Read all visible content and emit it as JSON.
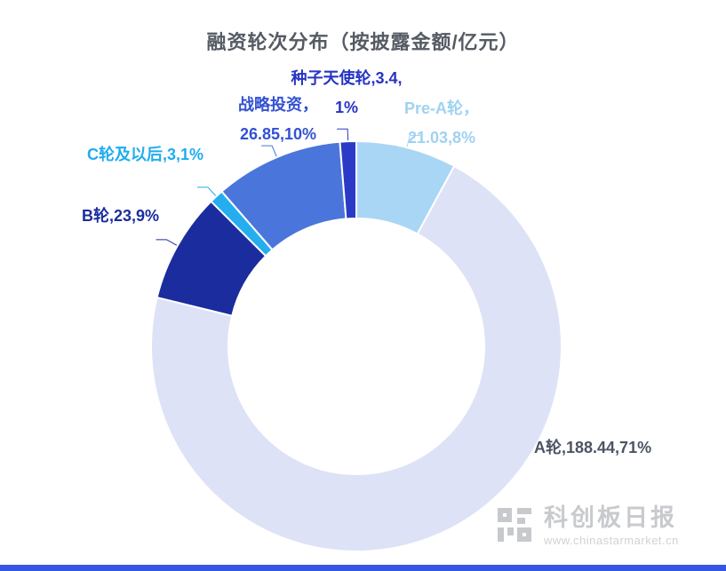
{
  "page": {
    "background": "#ffffff",
    "bottom_bar_color": "#3556E4"
  },
  "chart_data": {
    "type": "pie",
    "subtype": "donut",
    "title": "融资轮次分布（按披露金额/亿元）",
    "value_unit": "亿元",
    "label_position": "outside",
    "legend": "none",
    "series": [
      {
        "name": "Pre-A轮",
        "value": 21.03,
        "percent": "8%",
        "color": "#A9D6F5"
      },
      {
        "name": "A轮",
        "value": 188.44,
        "percent": "71%",
        "color": "#DEE2F7"
      },
      {
        "name": "B轮",
        "value": 23,
        "percent": "9%",
        "color": "#1A2C9E"
      },
      {
        "name": "C轮及以后",
        "value": 3,
        "percent": "1%",
        "color": "#24AEF0"
      },
      {
        "name": "战略投资",
        "value": 26.85,
        "percent": "10%",
        "color": "#4A76DB"
      },
      {
        "name": "种子天使轮",
        "value": 3.4,
        "percent": "1%",
        "color": "#2B3AC6"
      }
    ]
  },
  "callouts": {
    "seed": {
      "line1": "种子天使轮,3.4,",
      "line2": "1%",
      "color": "#2634C4"
    },
    "strategic": {
      "line1": "战略投资，",
      "line2": "26.85,10%",
      "color": "#3351D2"
    },
    "pre_a": {
      "line1": "Pre-A轮，",
      "line2": "21.03,8%",
      "color": "#9FD2F2"
    },
    "c_and_later": {
      "text": "C轮及以后,3,1%",
      "color": "#1FACEF"
    },
    "b_round": {
      "text": "B轮,23,9%",
      "color": "#1B2D9D"
    },
    "a_round": {
      "text": "A轮,188.44,71%",
      "color": "#4C5464"
    }
  },
  "watermark": {
    "name": "科创板日报",
    "url": "www.chinastarmarket.cn",
    "name_color": "#C8CACE",
    "url_color": "#D0D2D6",
    "logo_color": "#C7C9CD"
  }
}
